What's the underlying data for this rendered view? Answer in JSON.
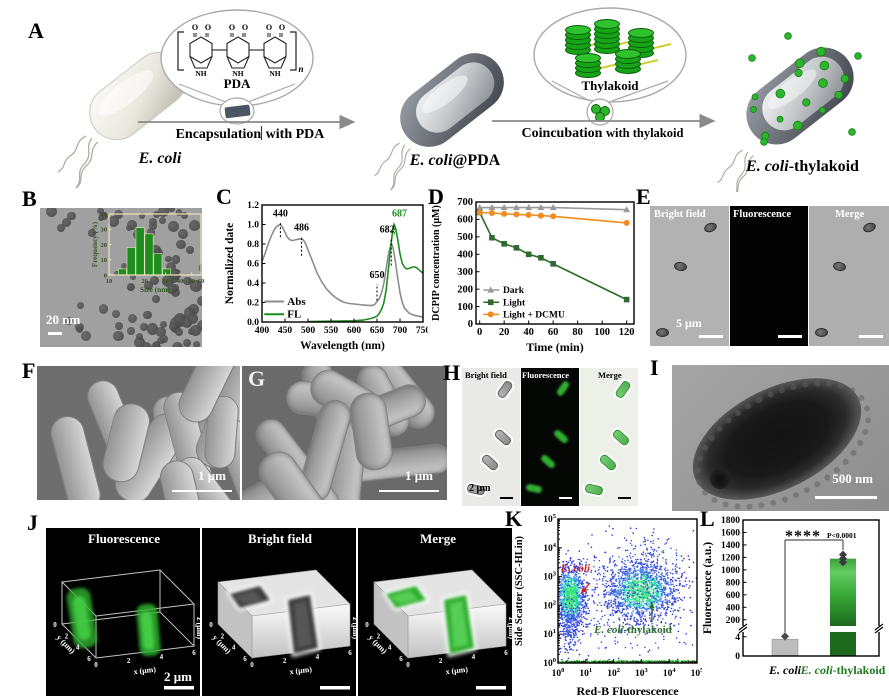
{
  "figure": {
    "panel_labels": {
      "A": "A",
      "B": "B",
      "C": "C",
      "D": "D",
      "E": "E",
      "F": "F",
      "G": "G",
      "H": "H",
      "I": "I",
      "J": "J",
      "K": "K",
      "L": "L"
    },
    "A": {
      "ecoli": {
        "italic": "E. coli",
        "rest": ""
      },
      "pda_label": "PDA",
      "arrow1": {
        "part1": "Encapsulation",
        "part2": "with PDA"
      },
      "ecoli_pda": {
        "italic": "E. coli",
        "rest": "@PDA"
      },
      "thylakoid_label": "Thylakoid",
      "arrow2": {
        "part1": "Coincubation",
        "part2": "with thylakoid"
      },
      "ecoli_thy": {
        "italic": "E. coli",
        "rest": "-thylakoid"
      },
      "structure": {
        "o": "O",
        "nh": "NH",
        "sub": "n"
      }
    },
    "B": {
      "scale_bar": "20 nm"
    },
    "E": {
      "titles": [
        "Bright field",
        "Fluorescence",
        "Merge"
      ],
      "scale_bar": "5 μm"
    },
    "F": {
      "scale_bar": "1 μm"
    },
    "G": {
      "scale_bar": "1 μm"
    },
    "H": {
      "titles": [
        "Bright field",
        "Fluorescence",
        "Merge"
      ],
      "scale_bar": "2 μm"
    },
    "I": {
      "scale_bar": "500 nm"
    },
    "J": {
      "titles": [
        "Fluorescence",
        "Bright field",
        "Merge"
      ],
      "scale_bar": "2 μm",
      "x_label": "x (μm)",
      "y_label": "y (μm)",
      "z_label": "z (μm)",
      "x_ticks": [
        "0",
        "2",
        "4",
        "6"
      ],
      "y_ticks": [
        "0",
        "2",
        "4",
        "6"
      ],
      "z_ticks": [
        "0.0",
        "0.6",
        "1.2",
        "1.8",
        "2.4"
      ]
    }
  },
  "chart_data": [
    {
      "id": "B_size_histogram",
      "type": "bar",
      "xlabel": "Size (nm)",
      "ylabel": "Frequency (%)",
      "x_scale": "log",
      "xlim": [
        10,
        60
      ],
      "ylim": [
        0,
        40
      ],
      "x_ticks": [
        10,
        20,
        30,
        40,
        50,
        60
      ],
      "y_ticks": [
        0,
        10,
        20,
        30,
        40
      ],
      "bin_edges": [
        12,
        14.2,
        16.9,
        20.1,
        23.9,
        28.4,
        33.7
      ],
      "values": [
        4,
        18,
        31,
        27,
        14,
        4
      ],
      "bar_color": "#1e8c1e",
      "axis_color": "#ede5bd",
      "text_color": "#3a4a22",
      "label_color": "#2f5a1f"
    },
    {
      "id": "C_spectra",
      "type": "line",
      "xlabel": "Wavelength (nm)",
      "ylabel": "Normalized date",
      "xlim": [
        400,
        750
      ],
      "ylim": [
        0,
        1.2
      ],
      "x_ticks": [
        400,
        450,
        500,
        550,
        600,
        650,
        700,
        750
      ],
      "y_ticks": [
        "0.0",
        "0.2",
        "0.4",
        "0.6",
        "0.8",
        "1.0",
        "1.2"
      ],
      "series": [
        {
          "name": "Abs",
          "color": "#8c8c8c",
          "points": [
            [
              400,
              0.62
            ],
            [
              405,
              0.68
            ],
            [
              410,
              0.75
            ],
            [
              415,
              0.82
            ],
            [
              420,
              0.88
            ],
            [
              425,
              0.93
            ],
            [
              430,
              0.97
            ],
            [
              435,
              0.99
            ],
            [
              440,
              1.0
            ],
            [
              445,
              0.97
            ],
            [
              450,
              0.92
            ],
            [
              455,
              0.87
            ],
            [
              460,
              0.845
            ],
            [
              465,
              0.835
            ],
            [
              470,
              0.84
            ],
            [
              475,
              0.845
            ],
            [
              480,
              0.85
            ],
            [
              486,
              0.85
            ],
            [
              490,
              0.84
            ],
            [
              495,
              0.8
            ],
            [
              500,
              0.74
            ],
            [
              510,
              0.62
            ],
            [
              520,
              0.5
            ],
            [
              530,
              0.41
            ],
            [
              540,
              0.34
            ],
            [
              550,
              0.29
            ],
            [
              560,
              0.25
            ],
            [
              570,
              0.22
            ],
            [
              580,
              0.2
            ],
            [
              590,
              0.19
            ],
            [
              600,
              0.185
            ],
            [
              610,
              0.18
            ],
            [
              620,
              0.175
            ],
            [
              630,
              0.17
            ],
            [
              640,
              0.17
            ],
            [
              645,
              0.18
            ],
            [
              650,
              0.21
            ],
            [
              655,
              0.24
            ],
            [
              660,
              0.3
            ],
            [
              665,
              0.4
            ],
            [
              670,
              0.55
            ],
            [
              675,
              0.7
            ],
            [
              680,
              0.79
            ],
            [
              682,
              0.8
            ],
            [
              685,
              0.76
            ],
            [
              690,
              0.62
            ],
            [
              695,
              0.45
            ],
            [
              700,
              0.3
            ],
            [
              705,
              0.2
            ],
            [
              710,
              0.14
            ],
            [
              720,
              0.09
            ],
            [
              730,
              0.07
            ],
            [
              740,
              0.06
            ],
            [
              750,
              0.05
            ]
          ]
        },
        {
          "name": "FL",
          "color": "#1e8c1e",
          "points": [
            [
              500,
              0.005
            ],
            [
              550,
              0.008
            ],
            [
              600,
              0.012
            ],
            [
              620,
              0.02
            ],
            [
              640,
              0.04
            ],
            [
              650,
              0.06
            ],
            [
              655,
              0.09
            ],
            [
              660,
              0.13
            ],
            [
              665,
              0.2
            ],
            [
              670,
              0.33
            ],
            [
              675,
              0.55
            ],
            [
              680,
              0.78
            ],
            [
              684,
              0.93
            ],
            [
              687,
              1.0
            ],
            [
              690,
              0.97
            ],
            [
              695,
              0.85
            ],
            [
              700,
              0.7
            ],
            [
              705,
              0.6
            ],
            [
              710,
              0.56
            ],
            [
              715,
              0.545
            ],
            [
              720,
              0.55
            ],
            [
              725,
              0.56
            ],
            [
              730,
              0.565
            ],
            [
              735,
              0.56
            ],
            [
              740,
              0.54
            ],
            [
              745,
              0.52
            ],
            [
              750,
              0.5
            ]
          ]
        }
      ],
      "annotations": [
        {
          "text": "440",
          "tx": 440,
          "ty": 1.08,
          "lx": 440,
          "leader": [
            0.87,
            1.02
          ],
          "color": "#000000"
        },
        {
          "text": "486",
          "tx": 486,
          "ty": 0.94,
          "lx": 486,
          "leader": [
            0.68,
            0.88
          ],
          "color": "#000000"
        },
        {
          "text": "650",
          "tx": 650,
          "ty": 0.45,
          "lx": 650,
          "leader": [
            0.22,
            0.39
          ],
          "color": "#000000"
        },
        {
          "text": "682",
          "tx": 672,
          "ty": 0.92,
          "lx": 681,
          "leader": [
            0.58,
            0.85
          ],
          "color": "#000000"
        },
        {
          "text": "687",
          "tx": 699,
          "ty": 1.08,
          "lx": 688,
          "leader": [
            0.9,
            1.02
          ],
          "color": "#1e8c1e"
        }
      ]
    },
    {
      "id": "D_dcpip",
      "type": "line",
      "xlabel": "Time (min)",
      "ylabel": "DCPIP concentration (μM)",
      "xlim": [
        -3,
        126
      ],
      "ylim": [
        0,
        700
      ],
      "x_ticks": [
        0,
        20,
        40,
        60,
        80,
        100,
        120
      ],
      "y_ticks": [
        0,
        100,
        200,
        300,
        400,
        500,
        600,
        700
      ],
      "series": [
        {
          "name": "Dark",
          "color": "#9a9a9a",
          "marker": "triangle",
          "x": [
            0,
            10,
            20,
            30,
            40,
            50,
            60,
            120
          ],
          "y": [
            668,
            668,
            668,
            668,
            668,
            668,
            668,
            656
          ]
        },
        {
          "name": "Light",
          "color": "#2d6a2d",
          "marker": "square",
          "x": [
            0,
            10,
            20,
            30,
            40,
            50,
            60,
            120
          ],
          "y": [
            640,
            495,
            460,
            437,
            400,
            380,
            345,
            140
          ]
        },
        {
          "name": "Light + DCMU",
          "color": "#f08c1e",
          "marker": "circle",
          "x": [
            0,
            10,
            20,
            30,
            40,
            50,
            60,
            120
          ],
          "y": [
            640,
            637,
            632,
            629,
            626,
            622,
            618,
            580
          ]
        }
      ],
      "legend_y": [
        195,
        125,
        55
      ]
    },
    {
      "id": "K_flow",
      "type": "scatter",
      "xlabel": "Red-B Fluorescence",
      "ylabel": "Side Scatter (SSC-HLin)",
      "x_scale": "log",
      "y_scale": "log",
      "xlim_exp": [
        0,
        5
      ],
      "ylim_exp": [
        0,
        5
      ],
      "clusters": [
        {
          "cx": 0.45,
          "cy": 2.3,
          "sx": 0.28,
          "sy": 0.55,
          "n": 950,
          "core": true
        },
        {
          "cx": 0.45,
          "cy": 1.2,
          "sx": 0.2,
          "sy": 0.45,
          "n": 200,
          "core": false
        },
        {
          "cx": 3.0,
          "cy": 2.5,
          "sx": 0.62,
          "sy": 0.5,
          "n": 1150,
          "core": true
        },
        {
          "cx": 3.05,
          "cy": 3.1,
          "sx": 0.85,
          "sy": 0.65,
          "n": 260,
          "core": false
        },
        {
          "cx": 2.2,
          "cy": 2.2,
          "sx": 1.35,
          "sy": 0.95,
          "n": 420,
          "core": false
        }
      ],
      "baseline": {
        "y": 0.05,
        "n": 260,
        "color": "#1aa81a"
      },
      "labels": [
        {
          "italic": "E. coli",
          "rest": "",
          "color": "#cc1f1f",
          "x": 0.1,
          "y": 3.18,
          "arrow": [
            1.15,
            2.78,
            0.82,
            2.4
          ]
        },
        {
          "italic": "E. coli",
          "rest": "-thylakoid",
          "color": "#2d6a2d",
          "x": 1.3,
          "y": 1.05,
          "arrow": [
            3.38,
            1.42,
            3.38,
            2.12
          ]
        }
      ]
    },
    {
      "id": "L_fluorescence",
      "type": "bar",
      "ylabel": "Fluorescence (a.u.)",
      "categories": [
        {
          "italic": "E. coli",
          "rest": "",
          "color": "#000000"
        },
        {
          "italic": "E. coli",
          "rest": "-thylakoid",
          "color": "#1e7a1e"
        }
      ],
      "values": [
        3.5,
        1180
      ],
      "scatter": [
        [
          4.1
        ],
        [
          1120,
          1180,
          1245
        ]
      ],
      "lower_ticks": [
        "0",
        "4"
      ],
      "lower_max": 5,
      "upper_ticks": [
        200,
        400,
        600,
        800,
        1000,
        1200,
        1400,
        1600,
        1800
      ],
      "upper_min": 100,
      "upper_max": 1800,
      "bar_colors": [
        "#bdbdbd",
        "gradient"
      ],
      "sig": {
        "stars": "****",
        "p": "P<0.0001"
      }
    }
  ]
}
